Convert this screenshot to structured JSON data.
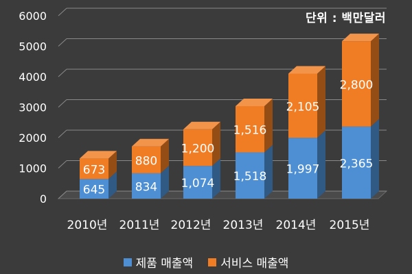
{
  "chart_data": {
    "type": "bar",
    "stacked": true,
    "three_d": true,
    "unit_note": "단위 : 백만달러",
    "categories": [
      "2010년",
      "2011년",
      "2012년",
      "2013년",
      "2014년",
      "2015년"
    ],
    "series": [
      {
        "name": "제품 매출액",
        "color": "#4e8fd4",
        "values": [
          645,
          834,
          1074,
          1518,
          1997,
          2365
        ]
      },
      {
        "name": "서비스 매출액",
        "color": "#f07c24",
        "values": [
          673,
          880,
          1200,
          1516,
          2105,
          2800
        ]
      }
    ],
    "data_labels": [
      [
        "645",
        "834",
        "1,074",
        "1,518",
        "1,997",
        "2,365"
      ],
      [
        "673",
        "880",
        "1,200",
        "1,516",
        "2,105",
        "2,800"
      ]
    ],
    "ylim": [
      0,
      6000
    ],
    "yticks": [
      "0",
      "1000",
      "2000",
      "3000",
      "4000",
      "5000",
      "6000"
    ],
    "grid": true,
    "legend_position": "bottom"
  }
}
